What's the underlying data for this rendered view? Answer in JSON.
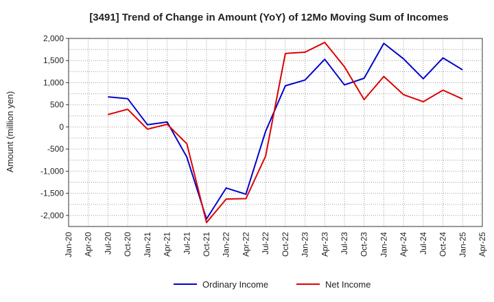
{
  "chart_data": {
    "type": "line",
    "title": "[3491]  Trend of Change in Amount (YoY) of 12Mo Moving Sum of Incomes",
    "xlabel": "",
    "ylabel": "Amount (million yen)",
    "ylim": [
      -2250,
      2000
    ],
    "yticks": [
      2000,
      1500,
      1000,
      500,
      0,
      -500,
      -1000,
      -1500,
      -2000
    ],
    "ytick_labels": [
      "2,000",
      "1,500",
      "1,000",
      "500",
      "0",
      "-500",
      "-1,000",
      "-1,500",
      "-2,000"
    ],
    "categories": [
      "Jan-20",
      "Apr-20",
      "Jul-20",
      "Oct-20",
      "Jan-21",
      "Apr-21",
      "Jul-21",
      "Oct-21",
      "Jan-22",
      "Apr-22",
      "Jul-22",
      "Oct-22",
      "Jan-23",
      "Apr-23",
      "Jul-23",
      "Oct-23",
      "Jan-24",
      "Apr-24",
      "Jul-24",
      "Oct-24",
      "Jan-25",
      "Apr-25"
    ],
    "grid": true,
    "legend_position": "bottom",
    "series": [
      {
        "name": "Ordinary Income",
        "color": "#0000cc",
        "values": [
          null,
          null,
          680,
          640,
          50,
          110,
          -680,
          -2080,
          -1380,
          -1520,
          -100,
          930,
          1060,
          1530,
          950,
          1100,
          1890,
          1540,
          1090,
          1560,
          1290,
          null
        ]
      },
      {
        "name": "Net Income",
        "color": "#dd0000",
        "values": [
          null,
          null,
          280,
          400,
          -50,
          60,
          -380,
          -2160,
          -1630,
          -1620,
          -660,
          1660,
          1690,
          1910,
          1360,
          620,
          1140,
          730,
          570,
          830,
          630,
          null
        ]
      }
    ]
  }
}
